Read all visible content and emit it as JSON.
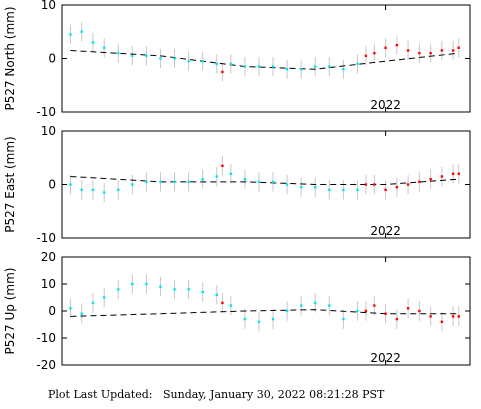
{
  "footer": {
    "label": "Plot Last Updated:",
    "timestamp": "Sunday, January 30, 2022 08:21:28 PST"
  },
  "colors": {
    "recent_points": "#ff0000",
    "older_points": "#00e5ee",
    "error_bars": "#c8c8c8",
    "trend": "#000000"
  },
  "chart_data": [
    {
      "type": "scatter",
      "title": "",
      "ylabel": "P527 North (mm)",
      "xlabel": "",
      "x_tick_labels": [
        {
          "x": 2022.0,
          "label": "2022"
        }
      ],
      "xlim": [
        2020.85,
        2022.3
      ],
      "ylim": [
        -10,
        10
      ],
      "yticks": [
        -10,
        0,
        10
      ],
      "grid": false,
      "series": [
        {
          "style": "older",
          "x": [
            2020.88,
            2020.92,
            2020.96,
            2021.0,
            2021.05,
            2021.1,
            2021.15,
            2021.2,
            2021.25,
            2021.3,
            2021.35,
            2021.4,
            2021.45,
            2021.5,
            2021.55,
            2021.6,
            2021.65,
            2021.7,
            2021.75,
            2021.8,
            2021.85,
            2021.9
          ],
          "y": [
            4.5,
            5,
            3,
            2,
            1,
            0.5,
            0.5,
            0,
            0,
            -0.5,
            -0.5,
            -1,
            -1,
            -1.5,
            -1.5,
            -1.5,
            -2,
            -2,
            -1.5,
            -1.5,
            -2,
            -1
          ]
        },
        {
          "style": "recent",
          "x": [
            2021.42,
            2021.93,
            2021.96,
            2022.0,
            2022.04,
            2022.08,
            2022.12,
            2022.16,
            2022.2,
            2022.24,
            2022.26
          ],
          "y": [
            -2.5,
            0.5,
            1,
            2,
            2.5,
            1.5,
            1,
            1,
            1.5,
            1.5,
            2
          ]
        }
      ],
      "trend": {
        "x": [
          2020.88,
          2021.2,
          2021.5,
          2021.75,
          2022.0,
          2022.26
        ],
        "y": [
          1.5,
          0.5,
          -1.5,
          -2,
          -0.5,
          1
        ]
      }
    },
    {
      "type": "scatter",
      "title": "",
      "ylabel": "P527 East (mm)",
      "xlabel": "",
      "x_tick_labels": [
        {
          "x": 2022.0,
          "label": "2022"
        }
      ],
      "xlim": [
        2020.85,
        2022.3
      ],
      "ylim": [
        -10,
        10
      ],
      "yticks": [
        -10,
        0,
        10
      ],
      "grid": false,
      "series": [
        {
          "style": "older",
          "x": [
            2020.88,
            2020.92,
            2020.96,
            2021.0,
            2021.05,
            2021.1,
            2021.15,
            2021.2,
            2021.25,
            2021.3,
            2021.35,
            2021.4,
            2021.45,
            2021.5,
            2021.55,
            2021.6,
            2021.65,
            2021.7,
            2021.75,
            2021.8,
            2021.85,
            2021.9
          ],
          "y": [
            0,
            -1,
            -1,
            -1.5,
            -1,
            0,
            0.5,
            0.5,
            0.5,
            0.5,
            1,
            1.5,
            2,
            1,
            0.5,
            0.5,
            0,
            -0.5,
            -0.5,
            -1,
            -1,
            -1
          ]
        },
        {
          "style": "recent",
          "x": [
            2021.42,
            2021.93,
            2021.96,
            2022.0,
            2022.04,
            2022.08,
            2022.12,
            2022.16,
            2022.2,
            2022.24,
            2022.26
          ],
          "y": [
            3.5,
            0,
            0,
            -1,
            -0.5,
            0,
            0.5,
            1,
            1.5,
            2,
            2
          ]
        }
      ],
      "trend": {
        "x": [
          2020.88,
          2021.2,
          2021.5,
          2021.75,
          2022.0,
          2022.26
        ],
        "y": [
          1.5,
          0.5,
          0.5,
          0,
          0,
          1
        ]
      }
    },
    {
      "type": "scatter",
      "title": "",
      "ylabel": "P527 Up (mm)",
      "xlabel": "",
      "x_tick_labels": [
        {
          "x": 2022.0,
          "label": "2022"
        }
      ],
      "xlim": [
        2020.85,
        2022.3
      ],
      "ylim": [
        -20,
        20
      ],
      "yticks": [
        -20,
        -10,
        0,
        10,
        20
      ],
      "grid": false,
      "series": [
        {
          "style": "older",
          "x": [
            2020.88,
            2020.92,
            2020.96,
            2021.0,
            2021.05,
            2021.1,
            2021.15,
            2021.2,
            2021.25,
            2021.3,
            2021.35,
            2021.4,
            2021.45,
            2021.5,
            2021.55,
            2021.6,
            2021.65,
            2021.7,
            2021.75,
            2021.8,
            2021.85,
            2021.9
          ],
          "y": [
            1,
            -1,
            3,
            5,
            8,
            10,
            10,
            9,
            8,
            8,
            7,
            6,
            2,
            -3,
            -4,
            -3,
            0,
            2,
            3,
            2,
            -3,
            0
          ]
        },
        {
          "style": "recent",
          "x": [
            2021.42,
            2021.93,
            2021.96,
            2022.0,
            2022.04,
            2022.08,
            2022.12,
            2022.16,
            2022.2,
            2022.24,
            2022.26
          ],
          "y": [
            3,
            0,
            2,
            -1,
            -3,
            1,
            0,
            -2,
            -4,
            -2,
            -2
          ]
        }
      ],
      "trend": {
        "x": [
          2020.88,
          2021.2,
          2021.5,
          2021.75,
          2022.0,
          2022.26
        ],
        "y": [
          -2,
          -1,
          0,
          0.5,
          -1,
          -1
        ]
      }
    }
  ]
}
